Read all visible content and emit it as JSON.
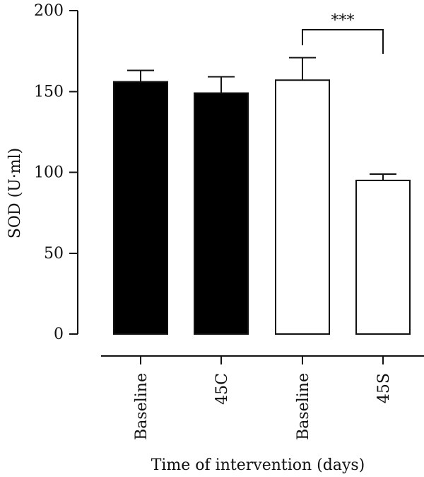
{
  "chart_data": {
    "type": "bar",
    "categories": [
      "Baseline",
      "45C",
      "Baseline",
      "45S"
    ],
    "values": [
      156,
      149,
      157,
      95
    ],
    "errors": [
      7,
      10,
      14,
      4
    ],
    "fills": [
      "#000000",
      "#000000",
      "#ffffff",
      "#ffffff"
    ],
    "ylabel": "SOD (U·ml)",
    "xlabel": "Time of intervention (days)",
    "ylim": [
      0,
      200
    ],
    "yticks": [
      0,
      50,
      100,
      150,
      200
    ],
    "significance": {
      "label": "***",
      "from_category": 2,
      "to_category": 3
    },
    "grid": false,
    "legend": "none"
  }
}
